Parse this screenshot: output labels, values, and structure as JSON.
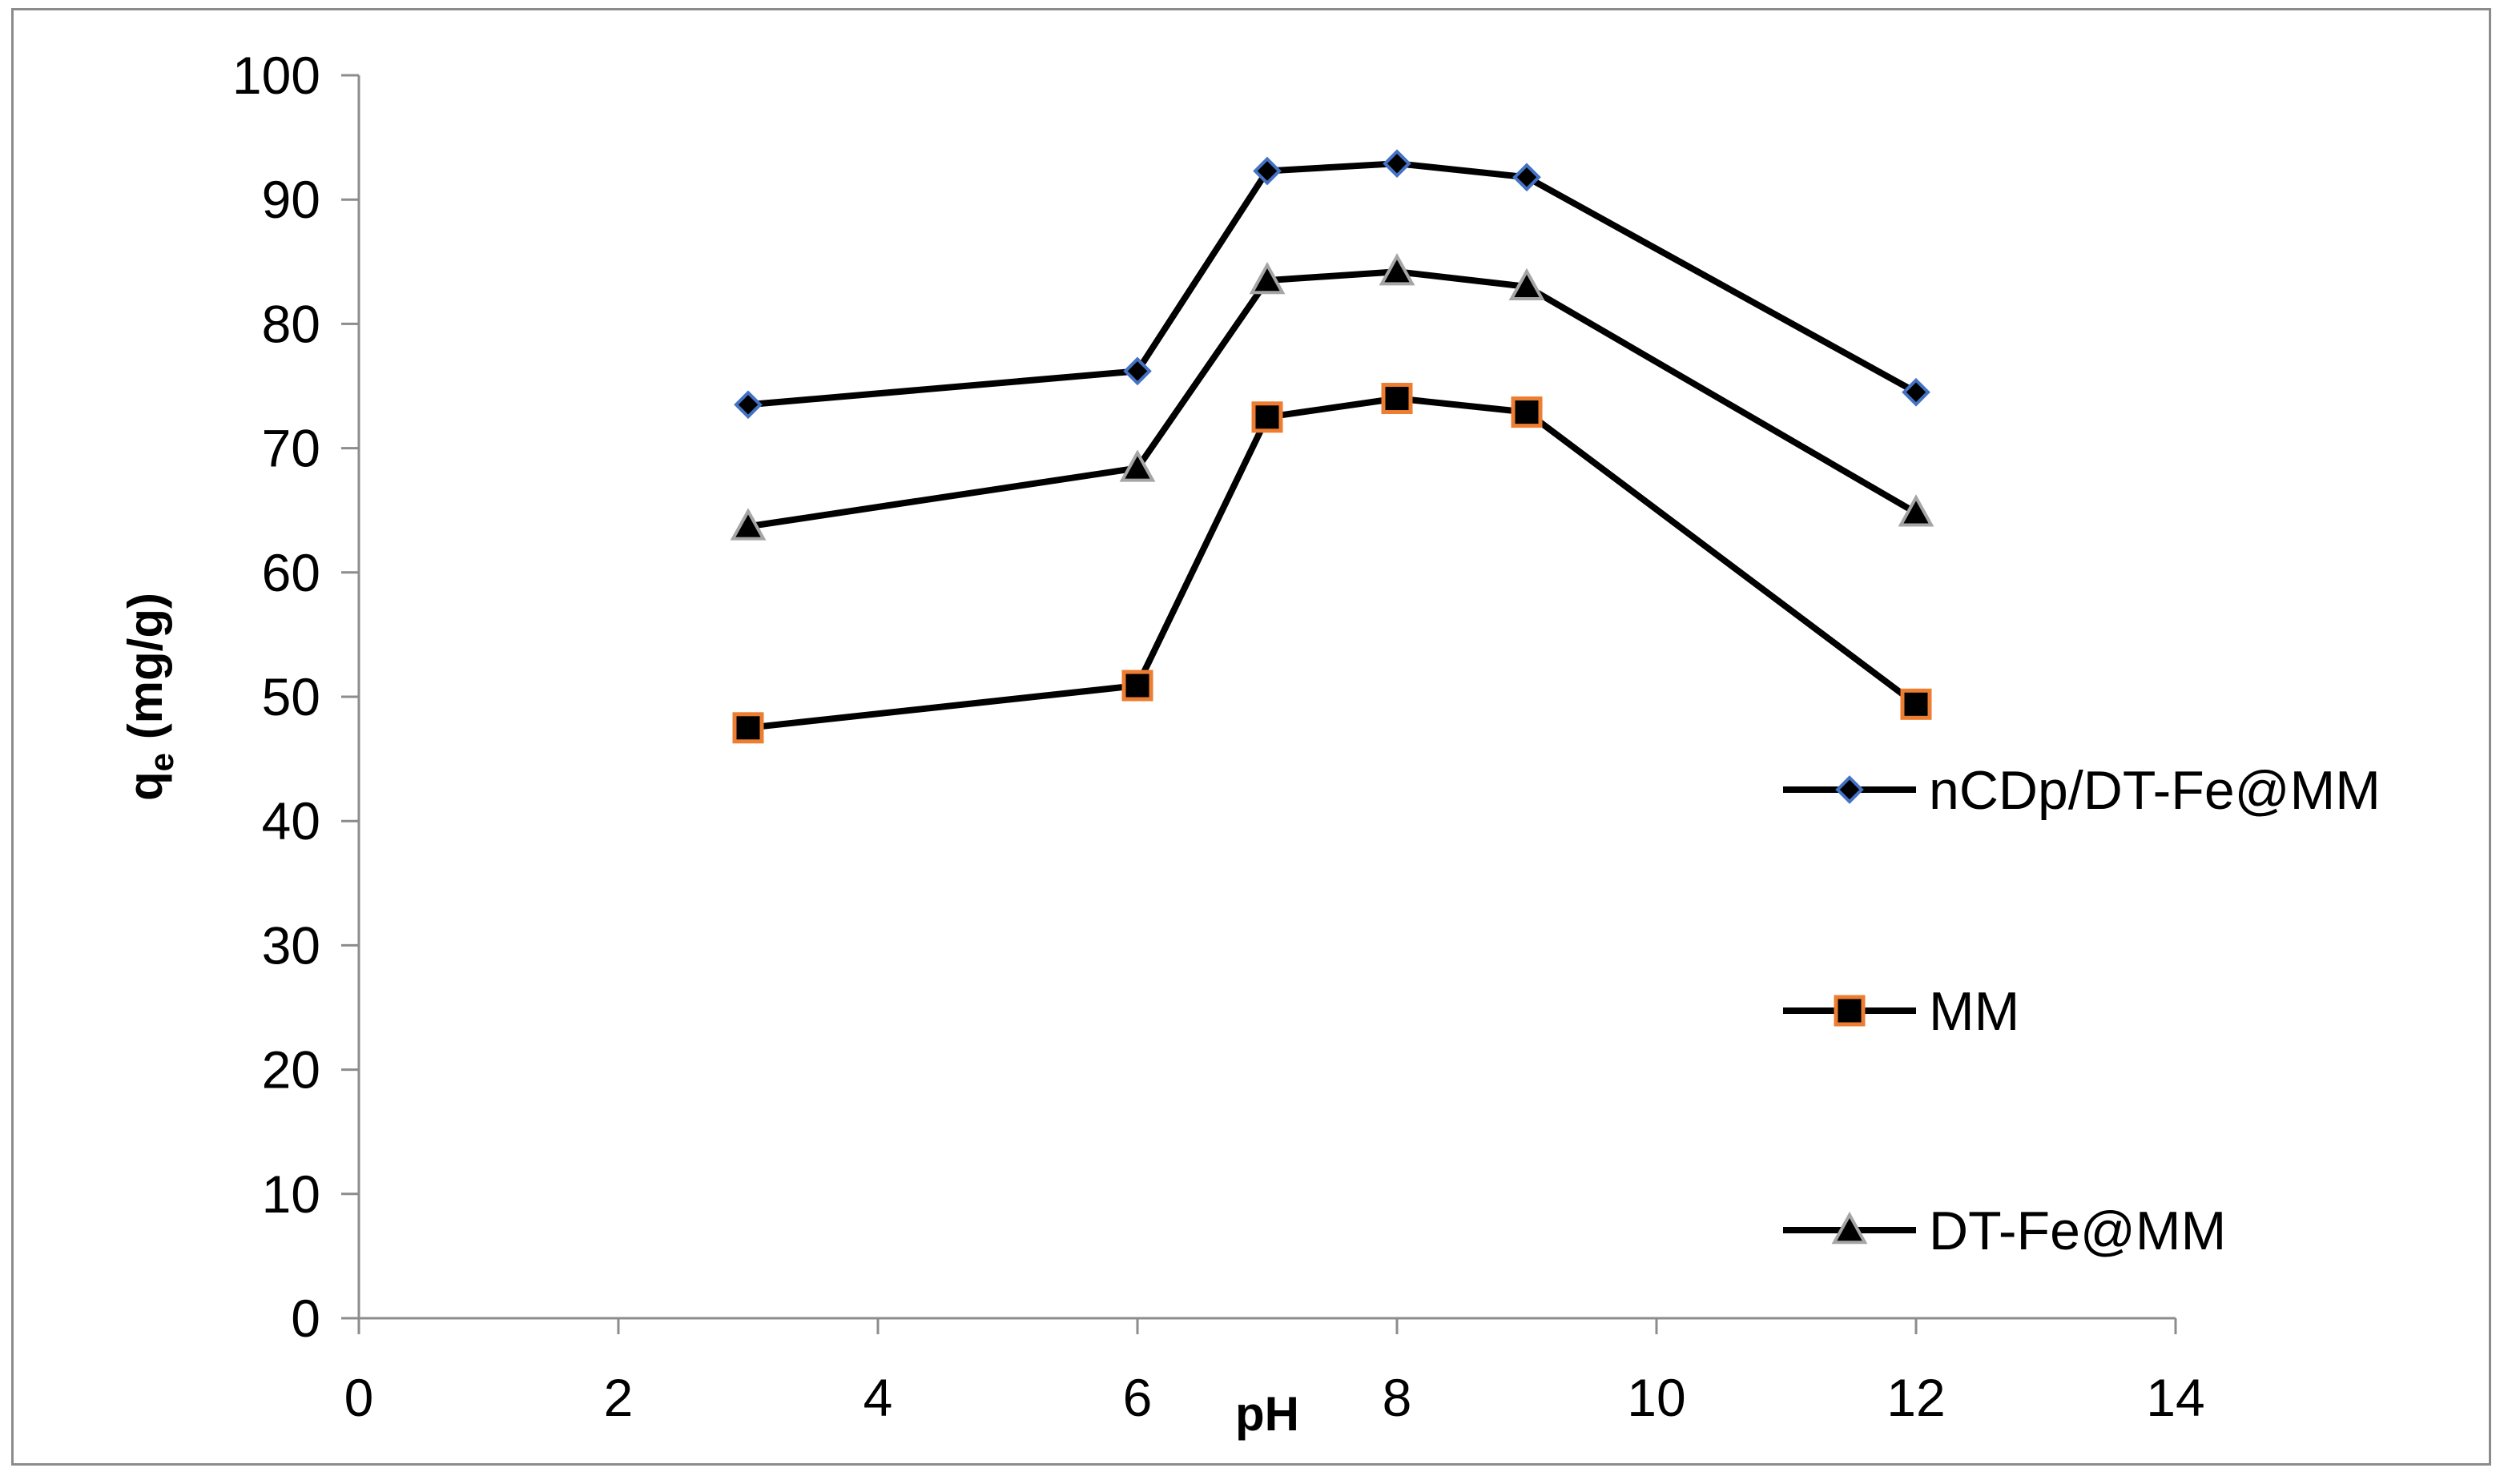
{
  "chart_data": {
    "type": "line",
    "title": "",
    "xlabel": "pH",
    "ylabel_main": "q",
    "ylabel_sub": "e",
    "ylabel_rest": " (mg/g)",
    "xlim": [
      0,
      14
    ],
    "ylim": [
      0,
      100
    ],
    "xticks": [
      0,
      2,
      4,
      6,
      8,
      10,
      12,
      14
    ],
    "yticks": [
      0,
      10,
      20,
      30,
      40,
      50,
      60,
      70,
      80,
      90,
      100
    ],
    "grid": false,
    "legend_position": "right",
    "x": [
      3,
      6,
      7,
      8,
      9,
      12
    ],
    "series": [
      {
        "name": "nCDp/DT-Fe@MM",
        "marker": "diamond",
        "line_color": "#000000",
        "marker_fill": "#000000",
        "marker_edge": "#4472c4",
        "values": [
          73.5,
          76.2,
          92.3,
          92.9,
          91.8,
          74.5
        ]
      },
      {
        "name": "MM",
        "marker": "square",
        "line_color": "#000000",
        "marker_fill": "#000000",
        "marker_edge": "#ed7d31",
        "values": [
          47.5,
          50.9,
          72.5,
          74.0,
          72.9,
          49.4
        ]
      },
      {
        "name": "DT-Fe@MM",
        "marker": "triangle",
        "line_color": "#000000",
        "marker_fill": "#000000",
        "marker_edge": "#a5a5a5",
        "values": [
          63.7,
          68.4,
          83.5,
          84.2,
          83.0,
          64.8
        ]
      }
    ]
  }
}
